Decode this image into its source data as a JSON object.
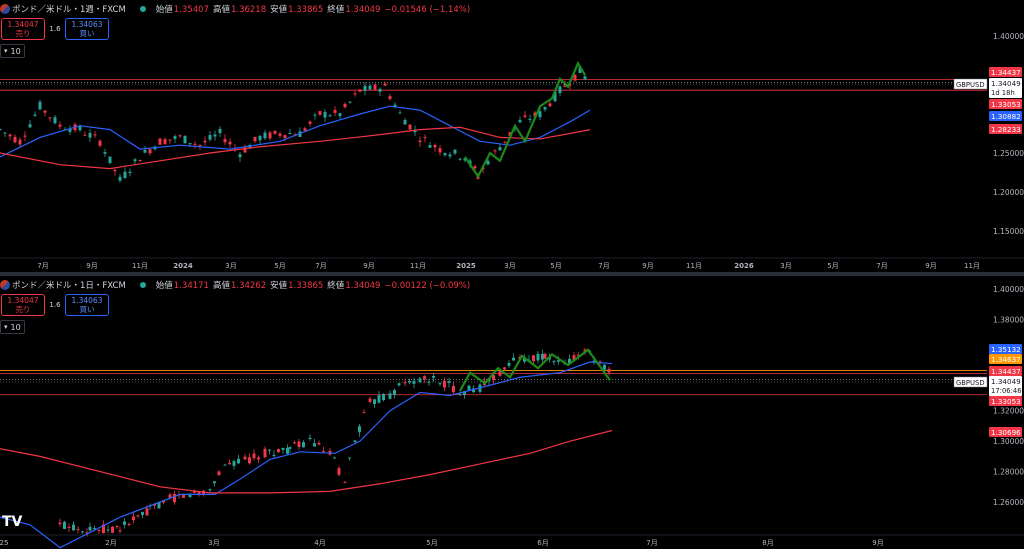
{
  "weekly": {
    "symbol_title": "ポンド／米ドル・1週・FXCM",
    "ohlc": [
      {
        "label": "始値",
        "value": "1.35407"
      },
      {
        "label": "高値",
        "value": "1.36218"
      },
      {
        "label": "安値",
        "value": "1.33865"
      },
      {
        "label": "終値",
        "value": "1.34049"
      },
      {
        "label": "",
        "value": "−0.01546 (−1.14%)"
      }
    ],
    "sell_price": "1.34047",
    "sell_label": "売り",
    "buy_price": "1.34063",
    "buy_label": "買い",
    "spread": "1.6",
    "indicator_count": "10",
    "price_ticks": [
      "1.40000",
      "1.25000",
      "1.20000",
      "1.15000"
    ],
    "time_ticks": [
      "7月",
      "9月",
      "11月",
      "2024",
      "3月",
      "5月",
      "7月",
      "9月",
      "11月",
      "2025",
      "3月",
      "5月",
      "7月",
      "9月",
      "11月",
      "2026",
      "3月",
      "5月",
      "7月",
      "9月",
      "11月"
    ],
    "symbol_tag": "GBPUSD",
    "price_tag": "1.34049",
    "countdown": "1d 18h",
    "tags": [
      {
        "text": "1.34437",
        "color": "#f23645"
      },
      {
        "text": "1.33053",
        "color": "#f23645"
      },
      {
        "text": "1.30882",
        "color": "#2962ff"
      },
      {
        "text": "1.28233",
        "color": "#f23645"
      }
    ]
  },
  "daily": {
    "symbol_title": "ポンド／米ドル・1日・FXCM",
    "ohlc": [
      {
        "label": "始値",
        "value": "1.34171"
      },
      {
        "label": "高値",
        "value": "1.34262"
      },
      {
        "label": "安値",
        "value": "1.33865"
      },
      {
        "label": "終値",
        "value": "1.34049"
      },
      {
        "label": "",
        "value": "−0.00122 (−0.09%)"
      }
    ],
    "sell_price": "1.34047",
    "sell_label": "売り",
    "buy_price": "1.34063",
    "buy_label": "買い",
    "spread": "1.6",
    "indicator_count": "10",
    "price_ticks": [
      "1.40000",
      "1.38000",
      "1.32000",
      "1.30000",
      "1.28000",
      "1.26000"
    ],
    "time_ticks": [
      "25",
      "2月",
      "3月",
      "4月",
      "5月",
      "6月",
      "7月",
      "8月",
      "9月"
    ],
    "symbol_tag": "GBPUSD",
    "price_tag": "1.34049",
    "countdown": "17:06:46",
    "tags": [
      {
        "text": "1.35132",
        "color": "#2962ff"
      },
      {
        "text": "1.34637",
        "color": "#ff9800"
      },
      {
        "text": "1.34437",
        "color": "#f23645"
      },
      {
        "text": "1.33053",
        "color": "#f23645"
      },
      {
        "text": "1.30696",
        "color": "#f23645"
      }
    ],
    "logo": "TV"
  },
  "colors": {
    "up": "#26a69a",
    "down": "#f23645",
    "ma_fast": "#2962ff",
    "ma_slow": "#f23645",
    "zigzag": "#1b8a1b",
    "level_line": "#f23645",
    "level_orange": "#ff9800"
  }
}
